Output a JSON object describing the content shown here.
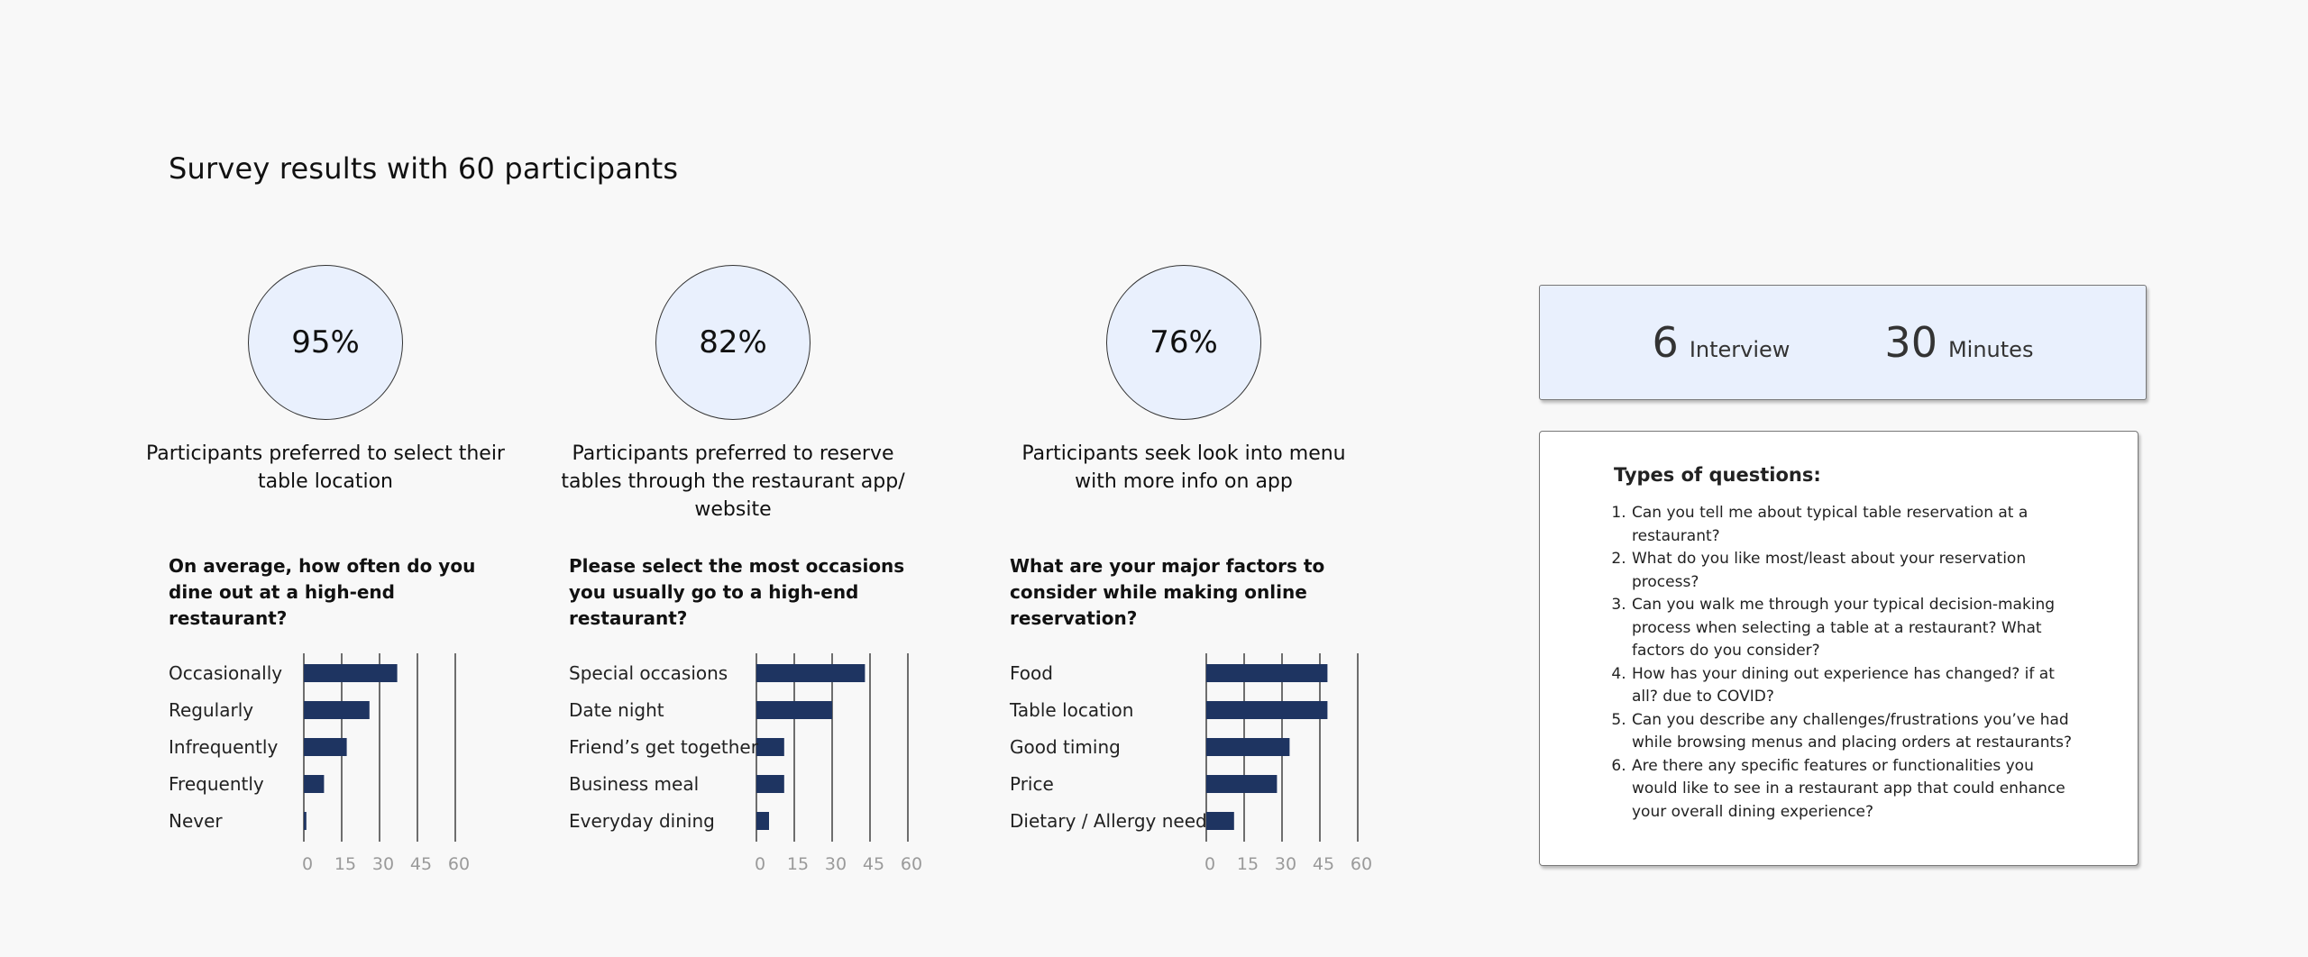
{
  "page": {
    "title": "Survey results with 60 participants"
  },
  "stats": [
    {
      "value": "95%",
      "caption": "Participants preferred to select their table location"
    },
    {
      "value": "82%",
      "caption": "Participants preferred to reserve tables through the restaurant app/ website"
    },
    {
      "value": "76%",
      "caption": "Participants seek look into menu with more info on app"
    }
  ],
  "info": {
    "interviews_count": "6",
    "interviews_label": "Interview",
    "minutes_count": "30",
    "minutes_label": "Minutes"
  },
  "question_types": {
    "heading": "Types of questions:",
    "items": [
      "Can you tell me about typical table reservation at a restaurant?",
      "What do you like most/least about your reservation process?",
      "Can you walk me through your typical decision-making process when selecting a table at a restaurant? What factors do you consider?",
      "How has your dining out experience has changed? if at all? due to COVID?",
      "Can you describe any challenges/frustrations you’ve had while browsing menus and placing orders at restaurants?",
      "Are there any specific features or functionalities you would like to see in a restaurant app that could enhance your overall dining experience?"
    ]
  },
  "colors": {
    "bar": "#1e3461",
    "circle_fill": "#e9f0fd",
    "tick": "#9a9a9a"
  },
  "chart_data": [
    {
      "type": "bar",
      "orientation": "horizontal",
      "title": "On average, how often do you dine out at a high-end restaurant?",
      "categories": [
        "Occasionally",
        "Regularly",
        "Infrequently",
        "Frequently",
        "Never"
      ],
      "values": [
        37,
        26,
        17,
        8,
        1
      ],
      "xticks": [
        "0",
        "15",
        "30",
        "45",
        "60"
      ],
      "xlim": [
        0,
        60
      ],
      "grid": true
    },
    {
      "type": "bar",
      "orientation": "horizontal",
      "title": "Please select the most occasions you usually go to a high-end restaurant?",
      "categories": [
        "Special occasions",
        "Date night",
        "Friend’s get together",
        "Business meal",
        "Everyday dining"
      ],
      "values": [
        43,
        30,
        11,
        11,
        5
      ],
      "xticks": [
        "0",
        "15",
        "30",
        "45",
        "60"
      ],
      "xlim": [
        0,
        60
      ],
      "grid": true
    },
    {
      "type": "bar",
      "orientation": "horizontal",
      "title": "What are your major factors to consider while making online reservation?",
      "categories": [
        "Food",
        "Table location",
        "Good timing",
        "Price",
        "Dietary / Allergy need"
      ],
      "values": [
        48,
        48,
        33,
        28,
        11
      ],
      "xticks": [
        "0",
        "15",
        "30",
        "45",
        "60"
      ],
      "xlim": [
        0,
        60
      ],
      "grid": true
    }
  ]
}
